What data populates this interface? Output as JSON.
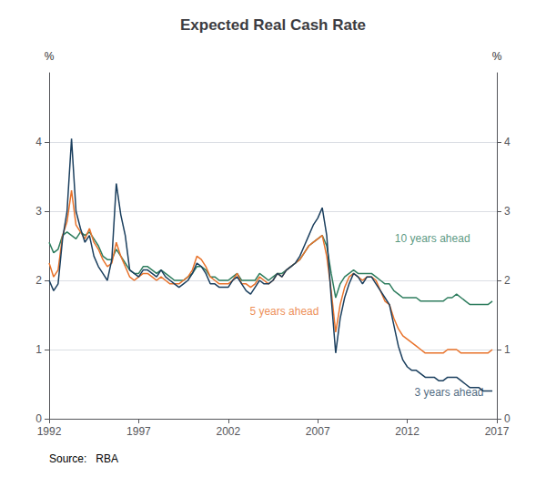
{
  "chart_data": {
    "type": "line",
    "title": "Expected Real Cash Rate",
    "ylabel": "%",
    "y2label": "%",
    "source": "Source:   RBA",
    "x": [
      1992.0,
      1992.25,
      1992.5,
      1992.75,
      1993.0,
      1993.25,
      1993.5,
      1993.75,
      1994.0,
      1994.25,
      1994.5,
      1994.75,
      1995.0,
      1995.25,
      1995.5,
      1995.75,
      1996.0,
      1996.25,
      1996.5,
      1996.75,
      1997.0,
      1997.25,
      1997.5,
      1997.75,
      1998.0,
      1998.25,
      1998.5,
      1998.75,
      1999.0,
      1999.25,
      1999.5,
      1999.75,
      2000.0,
      2000.25,
      2000.5,
      2000.75,
      2001.0,
      2001.25,
      2001.5,
      2001.75,
      2002.0,
      2002.25,
      2002.5,
      2002.75,
      2003.0,
      2003.25,
      2003.5,
      2003.75,
      2004.0,
      2004.25,
      2004.5,
      2004.75,
      2005.0,
      2005.25,
      2005.5,
      2005.75,
      2006.0,
      2006.25,
      2006.5,
      2006.75,
      2007.0,
      2007.25,
      2007.5,
      2007.75,
      2008.0,
      2008.25,
      2008.5,
      2008.75,
      2009.0,
      2009.25,
      2009.5,
      2009.75,
      2010.0,
      2010.25,
      2010.5,
      2010.75,
      2011.0,
      2011.25,
      2011.5,
      2011.75,
      2012.0,
      2012.25,
      2012.5,
      2012.75,
      2013.0,
      2013.25,
      2013.5,
      2013.75,
      2014.0,
      2014.25,
      2014.5,
      2014.75,
      2015.0,
      2015.25,
      2015.5,
      2015.75,
      2016.0,
      2016.25,
      2016.5,
      2016.75
    ],
    "series": [
      {
        "name": "10 years ahead",
        "color": "#2e7d5e",
        "values": [
          2.55,
          2.4,
          2.45,
          2.65,
          2.7,
          2.65,
          2.6,
          2.7,
          2.65,
          2.7,
          2.6,
          2.5,
          2.35,
          2.3,
          2.3,
          2.45,
          2.35,
          2.25,
          2.15,
          2.1,
          2.1,
          2.2,
          2.2,
          2.15,
          2.1,
          2.15,
          2.1,
          2.05,
          2.0,
          2.0,
          2.0,
          2.05,
          2.1,
          2.2,
          2.2,
          2.15,
          2.05,
          2.05,
          2.0,
          2.0,
          2.0,
          2.05,
          2.1,
          2.0,
          2.0,
          2.0,
          2.0,
          2.1,
          2.05,
          2.0,
          2.05,
          2.1,
          2.1,
          2.15,
          2.2,
          2.25,
          2.3,
          2.4,
          2.5,
          2.55,
          2.6,
          2.65,
          2.5,
          2.1,
          1.75,
          1.95,
          2.05,
          2.1,
          2.15,
          2.1,
          2.1,
          2.1,
          2.1,
          2.05,
          2.0,
          1.95,
          1.95,
          1.85,
          1.8,
          1.75,
          1.75,
          1.75,
          1.75,
          1.7,
          1.7,
          1.7,
          1.7,
          1.7,
          1.7,
          1.75,
          1.75,
          1.8,
          1.75,
          1.7,
          1.65,
          1.65,
          1.65,
          1.65,
          1.65,
          1.7
        ]
      },
      {
        "name": "5 years ahead",
        "color": "#e8722a",
        "values": [
          2.25,
          2.05,
          2.15,
          2.65,
          2.85,
          3.3,
          2.8,
          2.7,
          2.6,
          2.75,
          2.55,
          2.45,
          2.3,
          2.2,
          2.25,
          2.55,
          2.35,
          2.2,
          2.05,
          2.0,
          2.05,
          2.1,
          2.1,
          2.05,
          2.0,
          2.05,
          2.0,
          1.95,
          1.95,
          1.95,
          2.0,
          2.05,
          2.15,
          2.35,
          2.3,
          2.2,
          2.05,
          2.0,
          1.95,
          1.95,
          1.95,
          2.0,
          2.1,
          1.95,
          1.95,
          1.9,
          1.95,
          2.05,
          2.0,
          1.95,
          2.0,
          2.1,
          2.05,
          2.15,
          2.2,
          2.25,
          2.3,
          2.4,
          2.5,
          2.55,
          2.6,
          2.65,
          2.35,
          1.85,
          1.25,
          1.65,
          1.9,
          2.05,
          2.1,
          2.05,
          2.0,
          2.05,
          2.05,
          2.0,
          1.85,
          1.7,
          1.65,
          1.45,
          1.3,
          1.2,
          1.15,
          1.1,
          1.05,
          1.0,
          0.95,
          0.95,
          0.95,
          0.95,
          0.95,
          1.0,
          1.0,
          1.0,
          0.95,
          0.95,
          0.95,
          0.95,
          0.95,
          0.95,
          0.95,
          1.0
        ]
      },
      {
        "name": "3 years ahead",
        "color": "#1b3f5e",
        "values": [
          2.0,
          1.85,
          1.95,
          2.6,
          3.0,
          4.05,
          3.0,
          2.75,
          2.55,
          2.65,
          2.35,
          2.2,
          2.1,
          2.0,
          2.3,
          3.4,
          2.95,
          2.65,
          2.15,
          2.1,
          2.05,
          2.15,
          2.15,
          2.1,
          2.05,
          2.15,
          2.05,
          2.0,
          1.95,
          1.9,
          1.95,
          2.0,
          2.1,
          2.25,
          2.2,
          2.1,
          1.95,
          1.95,
          1.9,
          1.9,
          1.9,
          2.0,
          2.05,
          1.95,
          1.85,
          1.8,
          1.9,
          2.0,
          1.95,
          1.95,
          2.0,
          2.1,
          2.05,
          2.15,
          2.2,
          2.25,
          2.35,
          2.5,
          2.65,
          2.8,
          2.9,
          3.05,
          2.65,
          1.75,
          0.95,
          1.45,
          1.75,
          1.95,
          2.1,
          2.05,
          1.95,
          2.05,
          2.05,
          1.95,
          1.85,
          1.75,
          1.65,
          1.35,
          1.05,
          0.85,
          0.75,
          0.7,
          0.7,
          0.65,
          0.6,
          0.6,
          0.6,
          0.55,
          0.55,
          0.6,
          0.6,
          0.6,
          0.55,
          0.5,
          0.45,
          0.45,
          0.45,
          0.4,
          0.4,
          0.4
        ]
      }
    ],
    "annotations": [
      {
        "text": "10 years ahead",
        "x": 2011.3,
        "y": 2.6,
        "color": "#2e7d5e"
      },
      {
        "text": "5 years ahead",
        "x": 2003.2,
        "y": 1.55,
        "color": "#e8722a"
      },
      {
        "text": "3 years ahead",
        "x": 2012.4,
        "y": 0.38,
        "color": "#1b3f5e"
      }
    ],
    "xlim": [
      1992,
      2017
    ],
    "xticks": [
      1992,
      1997,
      2002,
      2007,
      2012,
      2017
    ],
    "ylim": [
      0,
      5
    ],
    "yticks": [
      0,
      1,
      2,
      3,
      4
    ],
    "y2lim": [
      0,
      5
    ],
    "y2ticks": [
      0,
      1,
      2,
      3,
      4
    ],
    "grid": true
  }
}
